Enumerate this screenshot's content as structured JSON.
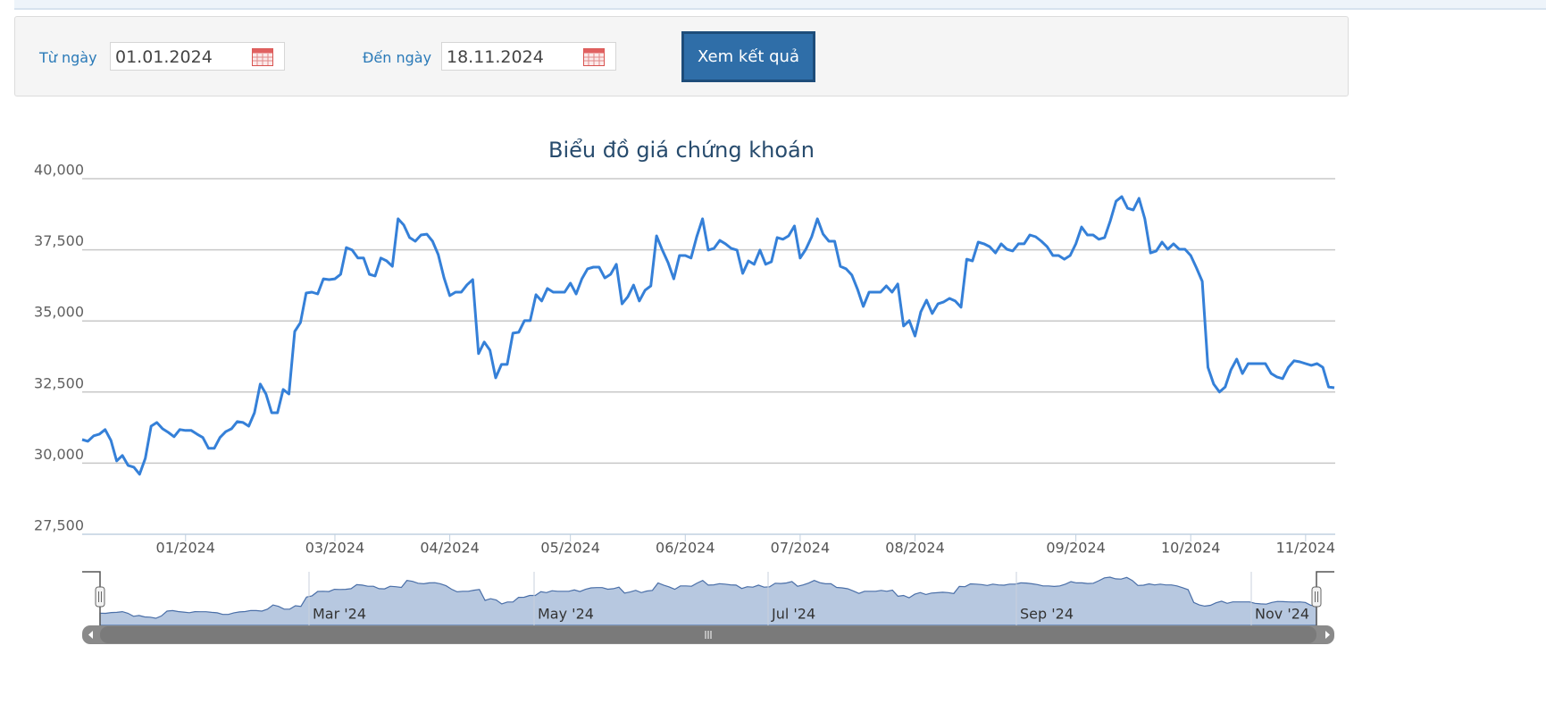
{
  "form": {
    "from_label": "Từ ngày",
    "from_value": "01.01.2024",
    "to_label": "Đến ngày",
    "to_value": "18.11.2024",
    "submit": "Xem kết quả"
  },
  "chart_data": {
    "type": "line",
    "title": "Biểu đồ giá chứng khoán",
    "color": "#3580d8",
    "categories": [
      null,
      null,
      null,
      null,
      null,
      null,
      null,
      null,
      null,
      null,
      null,
      null,
      null,
      null,
      null,
      null,
      null,
      null,
      "01/2024",
      null,
      null,
      null,
      null,
      null,
      null,
      null,
      null,
      null,
      null,
      null,
      null,
      null,
      null,
      null,
      null,
      null,
      null,
      null,
      null,
      null,
      null,
      null,
      null,
      null,
      "03/2024",
      null,
      null,
      null,
      null,
      null,
      null,
      null,
      null,
      null,
      null,
      null,
      null,
      null,
      null,
      null,
      null,
      null,
      null,
      null,
      "04/2024",
      null,
      null,
      null,
      null,
      null,
      null,
      null,
      null,
      null,
      null,
      null,
      null,
      null,
      null,
      null,
      null,
      null,
      null,
      null,
      null,
      "05/2024",
      null,
      null,
      null,
      null,
      null,
      null,
      null,
      null,
      null,
      null,
      null,
      null,
      null,
      null,
      null,
      null,
      null,
      null,
      null,
      "06/2024",
      null,
      null,
      null,
      null,
      null,
      null,
      null,
      null,
      null,
      null,
      null,
      null,
      null,
      null,
      null,
      null,
      null,
      null,
      null,
      "07/2024",
      null,
      null,
      null,
      null,
      null,
      null,
      null,
      null,
      null,
      null,
      null,
      null,
      null,
      null,
      null,
      null,
      null,
      null,
      null,
      "08/2024",
      null,
      null,
      null,
      null,
      null,
      null,
      null,
      null,
      null,
      null,
      null,
      null,
      null,
      null,
      null,
      null,
      null,
      null,
      null,
      null,
      null,
      null,
      null,
      null,
      null,
      null,
      null,
      "09/2024",
      null,
      null,
      null,
      null,
      null,
      null,
      null,
      null,
      null,
      null,
      null,
      null,
      null,
      null,
      null,
      null,
      null,
      null,
      null,
      "10/2024",
      null,
      null,
      null,
      null,
      null,
      null,
      null,
      null,
      null,
      null,
      null,
      null,
      null,
      null,
      null,
      null,
      null,
      null,
      null,
      "11/2024",
      null,
      null,
      null,
      null,
      null
    ],
    "values": [
      30830,
      30770,
      30960,
      31020,
      31180,
      30800,
      30080,
      30270,
      29920,
      29860,
      29610,
      30170,
      31300,
      31430,
      31210,
      31080,
      30930,
      31180,
      31150,
      31150,
      31020,
      30900,
      30520,
      30520,
      30900,
      31110,
      31210,
      31460,
      31430,
      31300,
      31770,
      32780,
      32430,
      31770,
      31770,
      32590,
      32430,
      34630,
      34940,
      35980,
      36010,
      35950,
      36480,
      36450,
      36480,
      36640,
      37580,
      37490,
      37210,
      37210,
      36640,
      36580,
      37210,
      37110,
      36920,
      38590,
      38370,
      37930,
      37800,
      38020,
      38050,
      37800,
      37330,
      36510,
      35890,
      36010,
      36010,
      36270,
      36450,
      33850,
      34260,
      33970,
      33000,
      33470,
      33470,
      34570,
      34600,
      35010,
      35010,
      35920,
      35700,
      36140,
      36010,
      36010,
      36010,
      36330,
      35950,
      36480,
      36830,
      36890,
      36890,
      36510,
      36640,
      36990,
      35600,
      35850,
      36260,
      35700,
      36080,
      36230,
      37990,
      37490,
      37050,
      36480,
      37300,
      37300,
      37210,
      37960,
      38590,
      37490,
      37550,
      37830,
      37710,
      37550,
      37490,
      36670,
      37110,
      36990,
      37490,
      36990,
      37080,
      37930,
      37870,
      37990,
      38340,
      37210,
      37520,
      37960,
      38590,
      38050,
      37800,
      37800,
      36920,
      36830,
      36610,
      36110,
      35510,
      36010,
      36010,
      36010,
      36230,
      36010,
      36300,
      34820,
      35010,
      34470,
      35320,
      35730,
      35260,
      35600,
      35670,
      35790,
      35700,
      35480,
      37170,
      37110,
      37770,
      37710,
      37610,
      37390,
      37710,
      37520,
      37460,
      37710,
      37710,
      38020,
      37960,
      37800,
      37610,
      37300,
      37300,
      37170,
      37300,
      37710,
      38300,
      38020,
      38020,
      37870,
      37930,
      38520,
      39210,
      39370,
      38960,
      38900,
      39310,
      38590,
      37390,
      37460,
      37770,
      37520,
      37710,
      37520,
      37520,
      37300,
      36860,
      36390,
      33370,
      32780,
      32500,
      32680,
      33280,
      33660,
      33150,
      33500,
      33500,
      33500,
      33500,
      33150,
      33030,
      32970,
      33370,
      33600,
      33560,
      33500,
      33440,
      33500,
      33370,
      32680,
      32650
    ],
    "ylim": [
      27500,
      40000
    ],
    "yticks": [
      {
        "value": 27500,
        "label": "27,500"
      },
      {
        "value": 30000,
        "label": "30,000"
      },
      {
        "value": 32500,
        "label": "32,500"
      },
      {
        "value": 35000,
        "label": "35,000"
      },
      {
        "value": 37500,
        "label": "37,500"
      },
      {
        "value": 40000,
        "label": "40,000"
      }
    ],
    "grid": true,
    "navigator_labels": [
      "Mar '24",
      "May '24",
      "Jul '24",
      "Sep '24",
      "Nov '24"
    ]
  }
}
